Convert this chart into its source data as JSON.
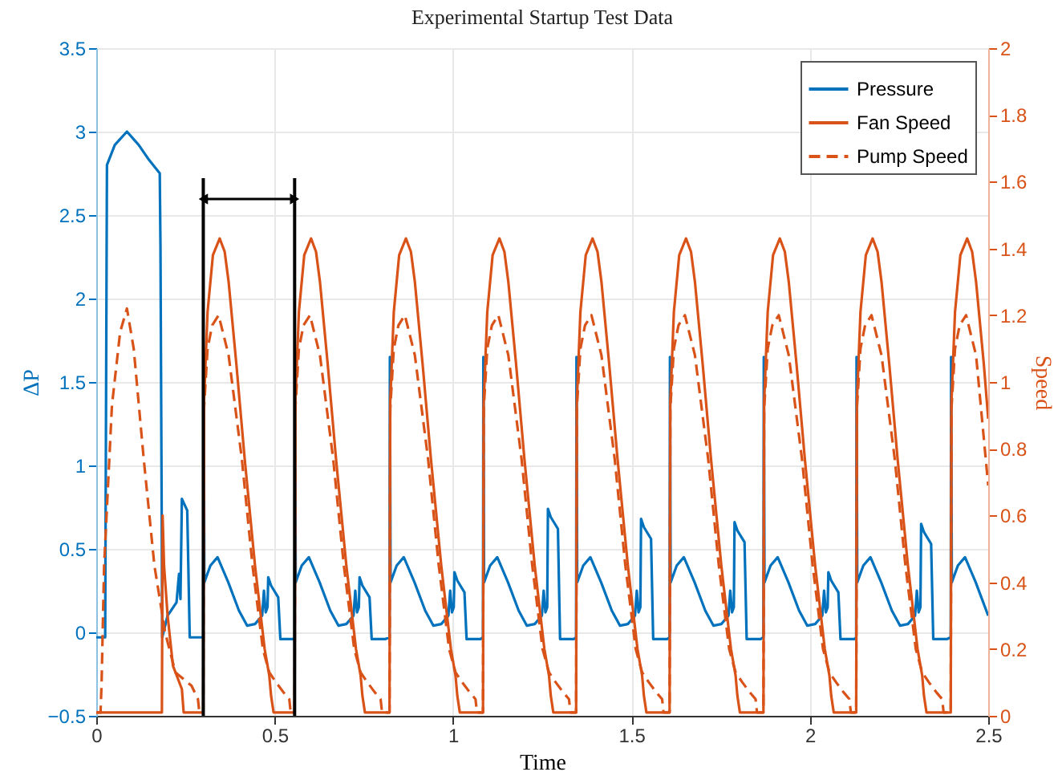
{
  "chart_data": {
    "type": "line",
    "title": "Experimental Startup Test Data",
    "xlabel": "Time",
    "ylabel": "ΔP",
    "y2label": "Speed",
    "xlim": [
      0,
      2.5
    ],
    "xticks": [
      0,
      0.5,
      1,
      1.5,
      2,
      2.5
    ],
    "ylim": [
      -0.5,
      3.5
    ],
    "yticks": [
      -0.5,
      0,
      0.5,
      1,
      1.5,
      2,
      2.5,
      3,
      3.5
    ],
    "y2lim": [
      0,
      2
    ],
    "y2ticks": [
      0,
      0.2,
      0.4,
      0.6,
      0.8,
      1,
      1.2,
      1.4,
      1.6,
      1.8,
      2
    ],
    "grid": true,
    "legend": "top right",
    "ref_lines": [
      {
        "axis": "x",
        "value": 0.3,
        "color": "#000000"
      },
      {
        "axis": "x",
        "value": 0.556,
        "color": "#000000"
      }
    ],
    "series": [
      {
        "name": "Pressure",
        "color": "#0072bd",
        "line_style": "solid",
        "x": [
          0,
          0.025,
          0.03,
          0.052,
          0.086,
          0.119,
          0.148,
          0.178,
          0.18,
          0.185,
          0.2,
          0.225,
          0.232,
          0.236,
          0.24,
          0.255,
          0.262,
          0.299,
          0.3,
          0.301,
          0.303,
          0.32,
          0.34,
          0.37,
          0.4,
          0.423,
          0.445,
          0.465,
          0.47,
          0.475,
          0.48,
          0.482,
          0.49,
          0.51,
          0.516,
          0.555,
          0.556,
          0.557,
          0.559,
          0.576,
          0.596,
          0.626,
          0.656,
          0.679,
          0.701,
          0.721,
          0.726,
          0.731,
          0.736,
          0.738,
          0.746,
          0.766,
          0.772,
          0.811,
          0.822,
          0.823,
          0.825,
          0.842,
          0.862,
          0.892,
          0.922,
          0.945,
          0.967,
          0.987,
          0.992,
          0.997,
          1.002,
          1.004,
          1.012,
          1.032,
          1.038,
          1.077,
          1.084,
          1.085,
          1.087,
          1.104,
          1.124,
          1.154,
          1.184,
          1.207,
          1.229,
          1.249,
          1.254,
          1.259,
          1.264,
          1.266,
          1.274,
          1.294,
          1.3,
          1.339,
          1.345,
          1.346,
          1.348,
          1.365,
          1.385,
          1.415,
          1.445,
          1.468,
          1.49,
          1.51,
          1.515,
          1.52,
          1.525,
          1.527,
          1.535,
          1.555,
          1.561,
          1.6,
          1.607,
          1.608,
          1.61,
          1.627,
          1.647,
          1.677,
          1.707,
          1.73,
          1.752,
          1.772,
          1.777,
          1.782,
          1.787,
          1.789,
          1.797,
          1.817,
          1.823,
          1.862,
          1.87,
          1.871,
          1.873,
          1.89,
          1.91,
          1.94,
          1.97,
          1.993,
          2.015,
          2.035,
          2.04,
          2.045,
          2.05,
          2.052,
          2.06,
          2.08,
          2.086,
          2.125,
          2.13,
          2.131,
          2.133,
          2.15,
          2.17,
          2.2,
          2.23,
          2.253,
          2.275,
          2.295,
          2.3,
          2.305,
          2.31,
          2.312,
          2.32,
          2.34,
          2.346,
          2.385,
          2.395,
          2.396,
          2.398,
          2.415,
          2.435,
          2.465,
          2.5
        ],
        "values": [
          -0.03,
          -0.03,
          2.8,
          2.92,
          3.0,
          2.92,
          2.83,
          2.75,
          2.31,
          -0.03,
          0.1,
          0.18,
          0.35,
          0.2,
          0.8,
          0.73,
          -0.03,
          -0.03,
          -0.03,
          1.65,
          0.3,
          0.4,
          0.45,
          0.3,
          0.13,
          0.04,
          0.05,
          0.1,
          0.25,
          0.12,
          0.15,
          0.33,
          0.28,
          0.21,
          -0.04,
          -0.04,
          -0.03,
          1.65,
          0.3,
          0.4,
          0.45,
          0.3,
          0.13,
          0.04,
          0.05,
          0.1,
          0.25,
          0.12,
          0.15,
          0.33,
          0.28,
          0.21,
          -0.04,
          -0.04,
          -0.03,
          1.65,
          0.3,
          0.4,
          0.45,
          0.3,
          0.13,
          0.04,
          0.05,
          0.1,
          0.25,
          0.12,
          0.15,
          0.36,
          0.31,
          0.24,
          -0.04,
          -0.04,
          -0.03,
          1.65,
          0.3,
          0.4,
          0.45,
          0.3,
          0.13,
          0.04,
          0.05,
          0.1,
          0.25,
          0.12,
          0.15,
          0.74,
          0.69,
          0.62,
          -0.04,
          -0.04,
          -0.03,
          1.65,
          0.3,
          0.4,
          0.45,
          0.3,
          0.13,
          0.04,
          0.05,
          0.1,
          0.25,
          0.12,
          0.15,
          0.68,
          0.63,
          0.56,
          -0.04,
          -0.04,
          -0.03,
          1.65,
          0.3,
          0.4,
          0.45,
          0.3,
          0.13,
          0.04,
          0.05,
          0.1,
          0.25,
          0.12,
          0.15,
          0.66,
          0.61,
          0.54,
          -0.04,
          -0.04,
          -0.03,
          1.65,
          0.3,
          0.4,
          0.45,
          0.3,
          0.13,
          0.04,
          0.05,
          0.1,
          0.25,
          0.12,
          0.15,
          0.36,
          0.31,
          0.24,
          -0.04,
          -0.04,
          -0.03,
          1.65,
          0.3,
          0.4,
          0.45,
          0.3,
          0.13,
          0.04,
          0.05,
          0.1,
          0.25,
          0.12,
          0.15,
          0.65,
          0.6,
          0.53,
          -0.04,
          -0.04,
          -0.03,
          1.65,
          0.3,
          0.4,
          0.45,
          0.3,
          0.1
        ]
      },
      {
        "name": "Fan Speed",
        "color": "#d95319",
        "line_style": "solid",
        "axis": "y2",
        "x": [
          0,
          0.184,
          0.186,
          0.19,
          0.2,
          0.215,
          0.24,
          0.245,
          0.299,
          0.3,
          0.302,
          0.312,
          0.327,
          0.346,
          0.36,
          0.371,
          0.393,
          0.416,
          0.445,
          0.472,
          0.485,
          0.49,
          0.497,
          0.555,
          0.556,
          0.558,
          0.568,
          0.583,
          0.602,
          0.616,
          0.627,
          0.649,
          0.672,
          0.701,
          0.728,
          0.741,
          0.746,
          0.753,
          0.811,
          0.822,
          0.824,
          0.834,
          0.849,
          0.868,
          0.882,
          0.893,
          0.915,
          0.938,
          0.967,
          0.994,
          1.007,
          1.012,
          1.019,
          1.077,
          1.084,
          1.086,
          1.096,
          1.111,
          1.13,
          1.144,
          1.155,
          1.177,
          1.2,
          1.229,
          1.256,
          1.269,
          1.274,
          1.281,
          1.339,
          1.345,
          1.347,
          1.357,
          1.372,
          1.391,
          1.405,
          1.416,
          1.438,
          1.461,
          1.49,
          1.517,
          1.53,
          1.535,
          1.542,
          1.6,
          1.607,
          1.609,
          1.619,
          1.634,
          1.653,
          1.667,
          1.678,
          1.7,
          1.723,
          1.752,
          1.779,
          1.792,
          1.797,
          1.804,
          1.862,
          1.87,
          1.872,
          1.882,
          1.897,
          1.916,
          1.93,
          1.941,
          1.963,
          1.986,
          2.015,
          2.042,
          2.055,
          2.06,
          2.067,
          2.125,
          2.13,
          2.132,
          2.142,
          2.157,
          2.176,
          2.19,
          2.201,
          2.223,
          2.246,
          2.275,
          2.302,
          2.315,
          2.32,
          2.327,
          2.385,
          2.395,
          2.397,
          2.407,
          2.422,
          2.441,
          2.455,
          2.466,
          2.488,
          2.5
        ],
        "values": [
          0.01,
          0.01,
          0.6,
          0.45,
          0.3,
          0.15,
          0.08,
          0.01,
          0.01,
          0.01,
          0.94,
          1.21,
          1.38,
          1.43,
          1.39,
          1.3,
          1.05,
          0.77,
          0.45,
          0.2,
          0.12,
          0.06,
          0.01,
          0.01,
          0.01,
          0.94,
          1.21,
          1.38,
          1.43,
          1.39,
          1.3,
          1.05,
          0.77,
          0.45,
          0.2,
          0.12,
          0.06,
          0.01,
          0.01,
          0.01,
          0.94,
          1.21,
          1.38,
          1.43,
          1.39,
          1.3,
          1.05,
          0.77,
          0.45,
          0.2,
          0.12,
          0.06,
          0.01,
          0.01,
          0.01,
          0.94,
          1.21,
          1.38,
          1.43,
          1.39,
          1.3,
          1.05,
          0.77,
          0.45,
          0.2,
          0.12,
          0.06,
          0.01,
          0.01,
          0.01,
          0.94,
          1.21,
          1.38,
          1.43,
          1.39,
          1.3,
          1.05,
          0.77,
          0.45,
          0.2,
          0.12,
          0.06,
          0.01,
          0.01,
          0.01,
          0.94,
          1.21,
          1.38,
          1.43,
          1.39,
          1.3,
          1.05,
          0.77,
          0.45,
          0.2,
          0.12,
          0.06,
          0.01,
          0.01,
          0.01,
          0.94,
          1.21,
          1.38,
          1.43,
          1.39,
          1.3,
          1.05,
          0.77,
          0.45,
          0.2,
          0.12,
          0.06,
          0.01,
          0.01,
          0.01,
          0.94,
          1.21,
          1.38,
          1.43,
          1.39,
          1.3,
          1.05,
          0.77,
          0.45,
          0.2,
          0.12,
          0.06,
          0.01,
          0.01,
          0.01,
          0.94,
          1.21,
          1.38,
          1.43,
          1.39,
          1.3,
          1.05,
          0.89
        ]
      },
      {
        "name": "Pump Speed",
        "color": "#d95319",
        "line_style": "dashed",
        "axis": "y2",
        "x": [
          0,
          0.012,
          0.015,
          0.022,
          0.044,
          0.067,
          0.086,
          0.105,
          0.133,
          0.163,
          0.193,
          0.222,
          0.267,
          0.285,
          0.289,
          0.299,
          0.3,
          0.302,
          0.312,
          0.325,
          0.343,
          0.371,
          0.408,
          0.438,
          0.467,
          0.485,
          0.504,
          0.525,
          0.541,
          0.545,
          0.555,
          0.556,
          0.558,
          0.568,
          0.581,
          0.599,
          0.627,
          0.664,
          0.694,
          0.723,
          0.741,
          0.76,
          0.781,
          0.797,
          0.801,
          0.811,
          0.822,
          0.824,
          0.834,
          0.847,
          0.865,
          0.893,
          0.93,
          0.96,
          0.989,
          1.007,
          1.026,
          1.047,
          1.063,
          1.067,
          1.077,
          1.084,
          1.086,
          1.096,
          1.109,
          1.127,
          1.155,
          1.192,
          1.222,
          1.251,
          1.269,
          1.288,
          1.309,
          1.325,
          1.329,
          1.339,
          1.345,
          1.347,
          1.357,
          1.37,
          1.388,
          1.416,
          1.453,
          1.483,
          1.512,
          1.53,
          1.549,
          1.57,
          1.586,
          1.59,
          1.6,
          1.607,
          1.609,
          1.619,
          1.632,
          1.65,
          1.678,
          1.715,
          1.745,
          1.774,
          1.792,
          1.811,
          1.832,
          1.848,
          1.852,
          1.862,
          1.87,
          1.872,
          1.882,
          1.895,
          1.913,
          1.941,
          1.978,
          2.008,
          2.037,
          2.055,
          2.074,
          2.095,
          2.111,
          2.115,
          2.125,
          2.13,
          2.132,
          2.142,
          2.155,
          2.173,
          2.201,
          2.238,
          2.268,
          2.297,
          2.315,
          2.334,
          2.355,
          2.371,
          2.375,
          2.385,
          2.395,
          2.397,
          2.407,
          2.42,
          2.438,
          2.466,
          2.5
        ],
        "values": [
          0.01,
          0.01,
          0.1,
          0.45,
          0.93,
          1.15,
          1.22,
          1.1,
          0.77,
          0.45,
          0.25,
          0.13,
          0.09,
          0.05,
          0.01,
          0.01,
          0.01,
          0.92,
          1.1,
          1.17,
          1.2,
          1.08,
          0.77,
          0.45,
          0.2,
          0.13,
          0.1,
          0.07,
          0.05,
          0.01,
          0.01,
          0.01,
          0.92,
          1.1,
          1.17,
          1.2,
          1.08,
          0.77,
          0.45,
          0.2,
          0.13,
          0.1,
          0.07,
          0.05,
          0.01,
          0.01,
          0.01,
          0.92,
          1.1,
          1.17,
          1.2,
          1.08,
          0.77,
          0.45,
          0.2,
          0.13,
          0.1,
          0.07,
          0.05,
          0.01,
          0.01,
          0.01,
          0.92,
          1.1,
          1.17,
          1.2,
          1.08,
          0.77,
          0.45,
          0.2,
          0.13,
          0.1,
          0.07,
          0.05,
          0.01,
          0.01,
          0.01,
          0.92,
          1.1,
          1.17,
          1.2,
          1.08,
          0.77,
          0.45,
          0.2,
          0.13,
          0.1,
          0.07,
          0.05,
          0.01,
          0.01,
          0.01,
          0.92,
          1.1,
          1.17,
          1.2,
          1.08,
          0.77,
          0.45,
          0.2,
          0.13,
          0.1,
          0.07,
          0.05,
          0.01,
          0.01,
          0.01,
          0.92,
          1.1,
          1.17,
          1.2,
          1.08,
          0.77,
          0.45,
          0.2,
          0.13,
          0.1,
          0.07,
          0.05,
          0.01,
          0.01,
          0.01,
          0.92,
          1.1,
          1.17,
          1.2,
          1.08,
          0.77,
          0.45,
          0.2,
          0.13,
          0.1,
          0.07,
          0.05,
          0.01,
          0.01,
          0.01,
          0.92,
          1.1,
          1.17,
          1.2,
          1.08,
          0.69
        ]
      }
    ]
  }
}
